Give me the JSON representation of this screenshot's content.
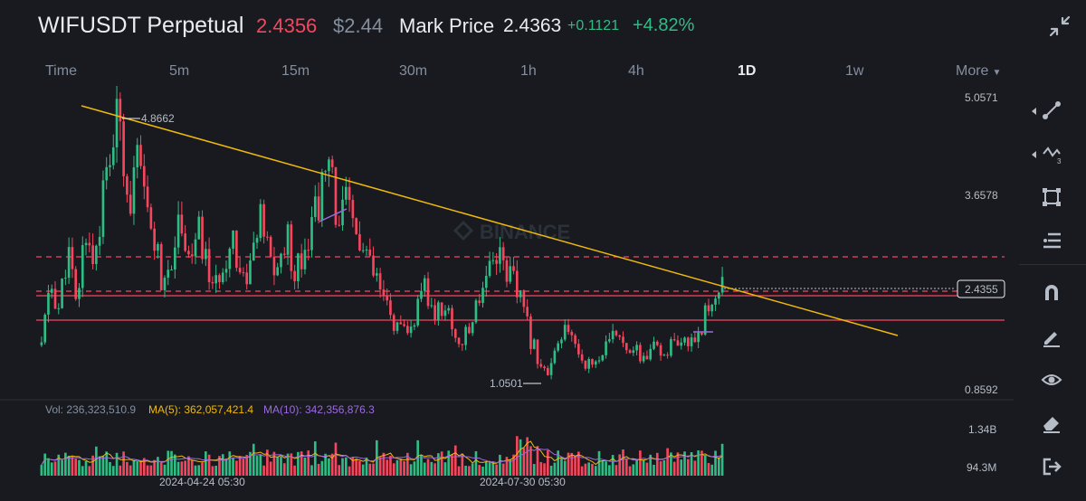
{
  "header": {
    "symbol": "WIFUSDT Perpetual",
    "last_price": "2.4356",
    "usd_price": "$2.44",
    "mark_label": "Mark Price",
    "mark_value": "2.4363",
    "change": "+0.1121",
    "change_pct": "+4.82%",
    "collapse_icon": "collapse-icon"
  },
  "timeframes": [
    "Time",
    "5m",
    "15m",
    "30m",
    "1h",
    "4h",
    "1D",
    "1w",
    "More"
  ],
  "active_timeframe": "1D",
  "price_axis": [
    "5.0571",
    "3.6578",
    "0.8592"
  ],
  "current_price_tag": "2.4355",
  "annotations": {
    "high": "4.8662",
    "low": "1.0501"
  },
  "watermark": "BINANCE",
  "volume": {
    "label": "Vol: 236,323,510.9",
    "ma5": "MA(5): 362,057,421.4",
    "ma10": "MA(10): 342,356,876.3",
    "axis": [
      "1.34B",
      "94.3M"
    ]
  },
  "dates": [
    "2024-04-24 05:30",
    "2024-07-30 05:30"
  ],
  "colors": {
    "up": "#2ebd85",
    "down": "#f6465d",
    "trendline": "#f0b90b",
    "ma5": "#f0b90b",
    "ma10": "#9c6ade",
    "background": "#181a20"
  },
  "toolbar": [
    "line-tool-icon",
    "wave-tool-icon",
    "rectangle-tool-icon",
    "fib-tool-icon",
    "magnet-icon",
    "brush-icon",
    "eye-icon",
    "eraser-icon",
    "exit-icon"
  ],
  "chart_data": {
    "type": "candlestick",
    "interval": "1D",
    "close_prices": [
      1.5,
      2.4,
      2.0,
      2.9,
      2.0,
      3.2,
      2.7,
      3.6,
      4.3,
      4.86,
      3.5,
      4.1,
      3.4,
      3.0,
      2.2,
      2.9,
      3.4,
      2.7,
      3.1,
      2.6,
      2.3,
      2.8,
      3.1,
      2.4,
      2.7,
      3.3,
      2.8,
      2.5,
      3.1,
      2.6,
      2.9,
      3.3,
      3.7,
      4.0,
      3.3,
      3.5,
      3.1,
      2.8,
      2.5,
      2.2,
      1.9,
      1.7,
      1.6,
      2.0,
      2.3,
      1.9,
      2.1,
      1.8,
      1.5,
      1.7,
      2.2,
      2.6,
      2.9,
      2.7,
      2.4,
      2.1,
      1.6,
      1.3,
      1.05,
      1.4,
      1.7,
      1.55,
      1.3,
      1.2,
      1.35,
      1.5,
      1.7,
      1.55,
      1.4,
      1.3,
      1.45,
      1.35,
      1.5,
      1.4,
      1.55,
      1.65,
      1.9,
      2.2,
      2.44
    ],
    "high": 4.8662,
    "low": 1.0501,
    "last": 2.4355,
    "ylim": [
      0.8592,
      5.0571
    ],
    "support_levels": [
      1.93,
      2.33,
      2.77
    ],
    "volume_axis": [
      "94.3M",
      "1.34B"
    ]
  }
}
